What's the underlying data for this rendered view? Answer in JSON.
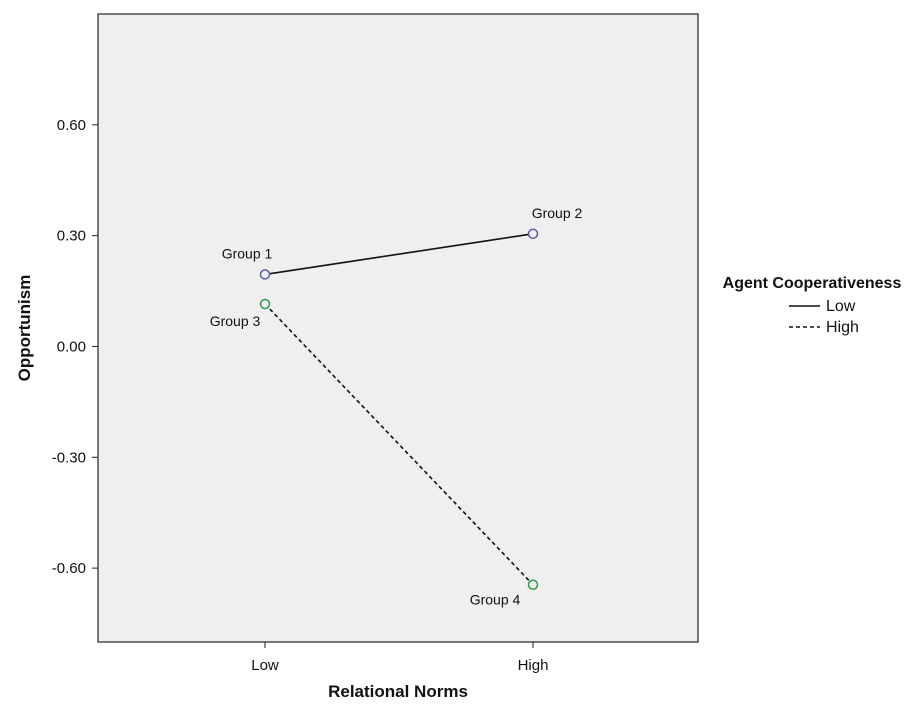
{
  "chart_data": {
    "type": "line",
    "x": [
      "Low",
      "High"
    ],
    "xlabel": "Relational Norms",
    "ylabel": "Opportunism",
    "y_ticks": [
      "0.60",
      "0.30",
      "0.00",
      "-0.30",
      "-0.60"
    ],
    "y_tick_values": [
      0.6,
      0.3,
      0.0,
      -0.3,
      -0.6
    ],
    "ylim": [
      -0.8,
      0.9
    ],
    "grid": false,
    "legend": {
      "title": "Agent Cooperativeness",
      "position": "right"
    },
    "series": [
      {
        "name": "Low",
        "line_style": "solid",
        "marker_color": "#5a5aa0",
        "values": [
          0.195,
          0.305
        ],
        "point_labels": [
          "Group 1",
          "Group 2"
        ]
      },
      {
        "name": "High",
        "line_style": "dashed",
        "marker_color": "#2e9a4a",
        "values": [
          0.115,
          -0.645
        ],
        "point_labels": [
          "Group 3",
          "Group 4"
        ]
      }
    ],
    "colors": {
      "plot_background": "#efefef",
      "line": "#111111"
    }
  }
}
